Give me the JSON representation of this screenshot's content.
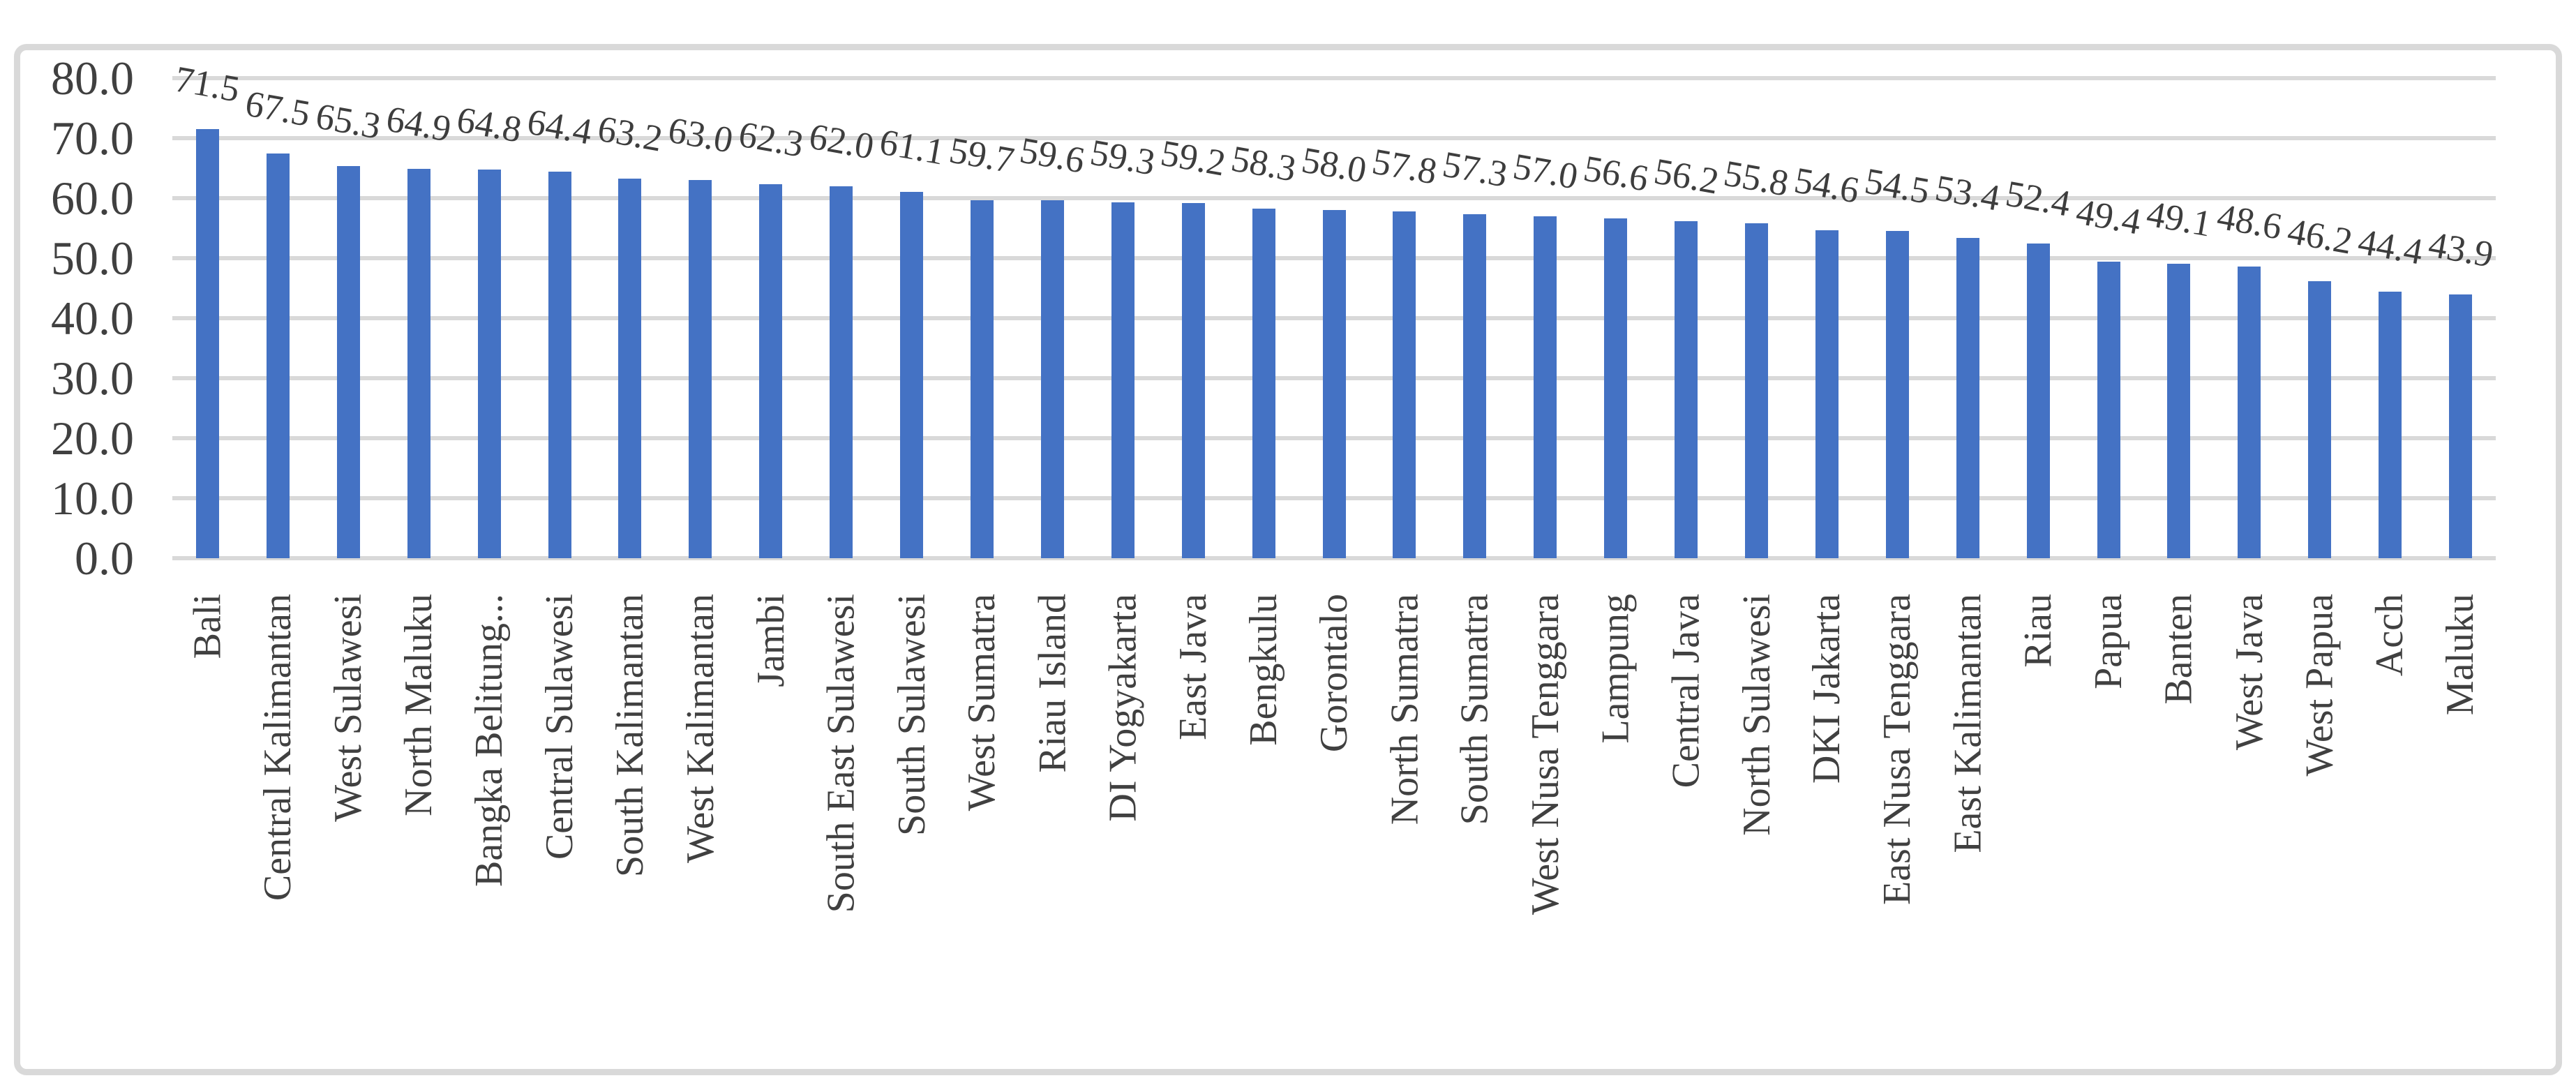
{
  "chart_data": {
    "type": "bar",
    "title": "",
    "xlabel": "",
    "ylabel": "",
    "categories": [
      "Bali",
      "Central Kalimantan",
      "West Sulawesi",
      "North Maluku",
      "Bangka Belitung...",
      "Central Sulawesi",
      "South Kalimantan",
      "West Kalimantan",
      "Jambi",
      "South East Sulawesi",
      "South Sulawesi",
      "West Sumatra",
      "Riau Island",
      "DI Yogyakarta",
      "East Java",
      "Bengkulu",
      "Gorontalo",
      "North Sumatra",
      "South Sumatra",
      "West Nusa Tenggara",
      "Lampung",
      "Central Java",
      "North Sulawesi",
      "DKI Jakarta",
      "East Nusa Tenggara",
      "East Kalimantan",
      "Riau",
      "Papua",
      "Banten",
      "West Java",
      "West Papua",
      "Acch",
      "Maluku"
    ],
    "values": [
      71.5,
      67.5,
      65.3,
      64.9,
      64.8,
      64.4,
      63.2,
      63.0,
      62.3,
      62.0,
      61.1,
      59.7,
      59.6,
      59.3,
      59.2,
      58.3,
      58.0,
      57.8,
      57.3,
      57.0,
      56.6,
      56.2,
      55.8,
      54.6,
      54.5,
      53.4,
      52.4,
      49.4,
      49.1,
      48.6,
      46.2,
      44.4,
      43.9
    ],
    "ylim": [
      0,
      80
    ],
    "ytick_step": 10,
    "ytick_decimals": 1,
    "value_label_decimals": 1,
    "grid": true,
    "legend": false,
    "bar_color": "#4472c4",
    "gridline_color": "#d9d9d9",
    "frame_color": "#d9d9d9",
    "text_color": "#404040",
    "value_label_rotation_deg": 10,
    "category_label_rotation_deg": -90
  }
}
